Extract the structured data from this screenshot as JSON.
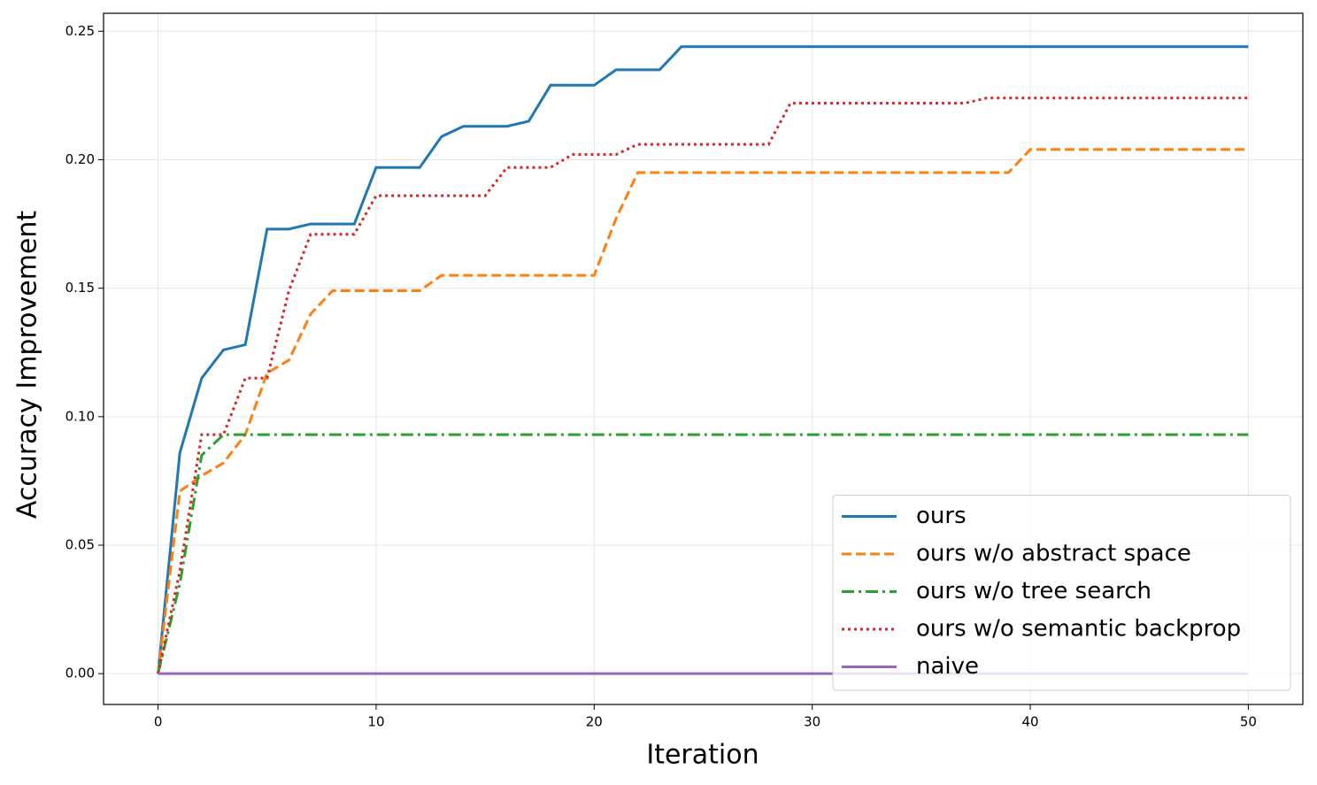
{
  "chart_data": {
    "type": "line",
    "x_label": "Iteration",
    "y_label": "Accuracy Improvement",
    "x": [
      0,
      1,
      2,
      3,
      4,
      5,
      6,
      7,
      8,
      9,
      10,
      11,
      12,
      13,
      14,
      15,
      16,
      17,
      18,
      19,
      20,
      21,
      22,
      23,
      24,
      25,
      26,
      27,
      28,
      29,
      30,
      31,
      32,
      33,
      34,
      35,
      36,
      37,
      38,
      39,
      40,
      41,
      42,
      43,
      44,
      45,
      46,
      47,
      48,
      49,
      50
    ],
    "series": [
      {
        "name": "ours",
        "color": "#1f77b4",
        "dash": "solid",
        "values": [
          0,
          0.086,
          0.115,
          0.126,
          0.128,
          0.173,
          0.173,
          0.175,
          0.175,
          0.175,
          0.197,
          0.197,
          0.197,
          0.209,
          0.213,
          0.213,
          0.213,
          0.215,
          0.229,
          0.229,
          0.229,
          0.235,
          0.235,
          0.235,
          0.244,
          0.244,
          0.244,
          0.244,
          0.244,
          0.244,
          0.244,
          0.244,
          0.244,
          0.244,
          0.244,
          0.244,
          0.244,
          0.244,
          0.244,
          0.244,
          0.244,
          0.244,
          0.244,
          0.244,
          0.244,
          0.244,
          0.244,
          0.244,
          0.244,
          0.244,
          0.244
        ]
      },
      {
        "name": "ours w/o abstract space",
        "color": "#ff7f0e",
        "dash": "dashed",
        "values": [
          0,
          0.071,
          0.077,
          0.082,
          0.093,
          0.117,
          0.122,
          0.14,
          0.149,
          0.149,
          0.149,
          0.149,
          0.149,
          0.155,
          0.155,
          0.155,
          0.155,
          0.155,
          0.155,
          0.155,
          0.155,
          0.177,
          0.195,
          0.195,
          0.195,
          0.195,
          0.195,
          0.195,
          0.195,
          0.195,
          0.195,
          0.195,
          0.195,
          0.195,
          0.195,
          0.195,
          0.195,
          0.195,
          0.195,
          0.195,
          0.204,
          0.204,
          0.204,
          0.204,
          0.204,
          0.204,
          0.204,
          0.204,
          0.204,
          0.204,
          0.204
        ]
      },
      {
        "name": "ours w/o tree search",
        "color": "#2ca02c",
        "dash": "dashdot",
        "values": [
          0,
          0.035,
          0.085,
          0.093,
          0.093,
          0.093,
          0.093,
          0.093,
          0.093,
          0.093,
          0.093,
          0.093,
          0.093,
          0.093,
          0.093,
          0.093,
          0.093,
          0.093,
          0.093,
          0.093,
          0.093,
          0.093,
          0.093,
          0.093,
          0.093,
          0.093,
          0.093,
          0.093,
          0.093,
          0.093,
          0.093,
          0.093,
          0.093,
          0.093,
          0.093,
          0.093,
          0.093,
          0.093,
          0.093,
          0.093,
          0.093,
          0.093,
          0.093,
          0.093,
          0.093,
          0.093,
          0.093,
          0.093,
          0.093,
          0.093,
          0.093
        ]
      },
      {
        "name": "ours w/o semantic backprop",
        "color": "#d62728",
        "dash": "dotted",
        "values": [
          0,
          0.04,
          0.093,
          0.093,
          0.115,
          0.115,
          0.149,
          0.171,
          0.171,
          0.171,
          0.186,
          0.186,
          0.186,
          0.186,
          0.186,
          0.186,
          0.197,
          0.197,
          0.197,
          0.202,
          0.202,
          0.202,
          0.206,
          0.206,
          0.206,
          0.206,
          0.206,
          0.206,
          0.206,
          0.222,
          0.222,
          0.222,
          0.222,
          0.222,
          0.222,
          0.222,
          0.222,
          0.222,
          0.224,
          0.224,
          0.224,
          0.224,
          0.224,
          0.224,
          0.224,
          0.224,
          0.224,
          0.224,
          0.224,
          0.224,
          0.224
        ]
      },
      {
        "name": "naive",
        "color": "#9467bd",
        "dash": "solid",
        "values": [
          0,
          0,
          0,
          0,
          0,
          0,
          0,
          0,
          0,
          0,
          0,
          0,
          0,
          0,
          0,
          0,
          0,
          0,
          0,
          0,
          0,
          0,
          0,
          0,
          0,
          0,
          0,
          0,
          0,
          0,
          0,
          0,
          0,
          0,
          0,
          0,
          0,
          0,
          0,
          0,
          0,
          0,
          0,
          0,
          0,
          0,
          0,
          0,
          0,
          0,
          0
        ]
      }
    ],
    "xlim": [
      -2.5,
      52.5
    ],
    "xticks": [
      0,
      10,
      20,
      30,
      40,
      50
    ],
    "ylim": [
      -0.012,
      0.257
    ],
    "yticks": [
      {
        "value": 0,
        "label": "0.00"
      },
      {
        "value": 0.05,
        "label": "0.05"
      },
      {
        "value": 0.1,
        "label": "0.10"
      },
      {
        "value": 0.15,
        "label": "0.15"
      },
      {
        "value": 0.2,
        "label": "0.20"
      },
      {
        "value": 0.25,
        "label": "0.25"
      }
    ],
    "grid": true,
    "legend": "lower right"
  }
}
